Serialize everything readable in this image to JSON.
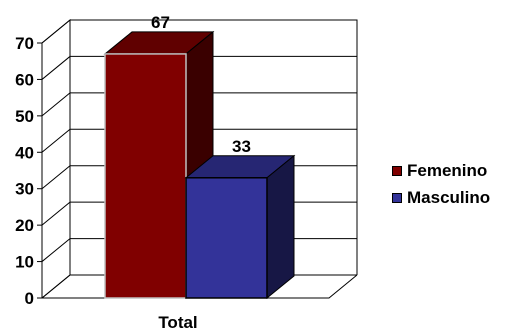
{
  "chart_data": {
    "type": "bar",
    "categories": [
      "Total"
    ],
    "series": [
      {
        "name": "Femenino",
        "values": [
          67
        ],
        "color": "#800000",
        "data_label": "67"
      },
      {
        "name": "Masculino",
        "values": [
          33
        ],
        "color": "#333399",
        "data_label": "33"
      }
    ],
    "xlabel": "",
    "ylabel": "",
    "ylim": [
      0,
      70
    ],
    "yticks": [
      "0",
      "10",
      "20",
      "30",
      "40",
      "50",
      "60",
      "70"
    ],
    "grid": true,
    "three_d": true,
    "legend_position": "right"
  }
}
